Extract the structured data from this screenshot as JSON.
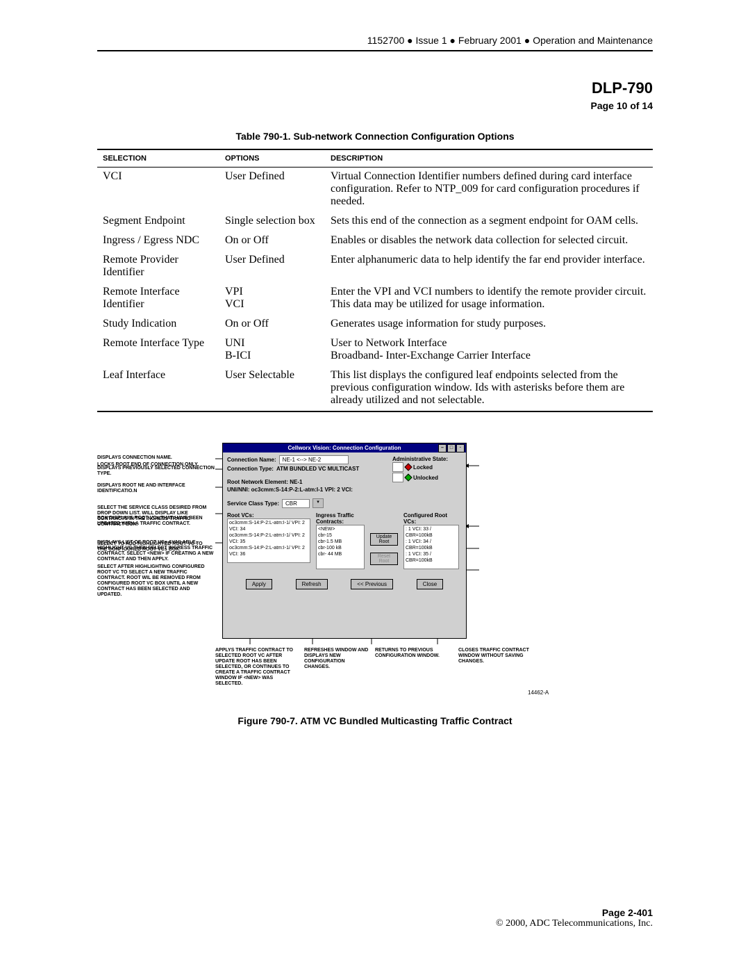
{
  "header": {
    "docnum": "1152700",
    "issue": "Issue 1",
    "date": "February 2001",
    "section": "Operation and Maintenance",
    "bullet": "●"
  },
  "title": {
    "dlp": "DLP-790",
    "page_of": "Page 10 of 14"
  },
  "table": {
    "caption": "Table 790-1. Sub-network Connection Configuration Options",
    "columns": [
      "Selection",
      "Options",
      "Description"
    ],
    "rows": [
      [
        "VCI",
        "User Defined",
        "Virtual Connection Identifier numbers defined during card interface configuration. Refer to NTP_009 for card configuration procedures if needed."
      ],
      [
        "Segment Endpoint",
        "Single selection box",
        "Sets this end of the connection as a segment endpoint for OAM cells."
      ],
      [
        "Ingress / Egress NDC",
        "On or Off",
        "Enables or disables the network data collection for selected circuit."
      ],
      [
        "Remote Provider Identifier",
        "User Defined",
        "Enter alphanumeric data to help identify the far end provider interface."
      ],
      [
        "Remote Interface Identifier",
        "VPI\nVCI",
        "Enter the VPI and VCI numbers to identify the remote provider circuit. This data may be utilized for usage information."
      ],
      [
        "Study Indication",
        "On or Off",
        "Generates usage information for study purposes."
      ],
      [
        "Remote Interface Type",
        "UNI\nB-ICI",
        "User to Network Interface\nBroadband- Inter-Exchange Carrier Interface"
      ],
      [
        "Leaf Interface",
        "User Selectable",
        "This list displays the configured leaf endpoints selected from the previous configuration window. Ids with asterisks before them are already utilized and not selectable."
      ]
    ]
  },
  "window": {
    "title": "Cellworx Vision: Connection Configuration",
    "conn_name_label": "Connection Name:",
    "conn_name_value": "NE-1 <--> NE-2",
    "conn_type_label": "Connection Type:",
    "conn_type_value": "ATM BUNDLED VC MULTICAST",
    "admin_state_label": "Administrative State:",
    "locked": "Locked",
    "unlocked": "Unlocked",
    "root_ne_label": "Root Network Element: NE-1",
    "uni_nni_label": "UNI/NNI:  oc3cmm:S-14:P-2:L-atm:I-1  VPI: 2  VCI:",
    "svc_class_label": "Service Class Type:",
    "svc_class_value": "CBR",
    "root_vcs_label": "Root VCs:",
    "root_vcs_items": [
      "oc3cmm:S-14:P-2:L-atm:I-1/ VPI: 2  VCI: 34",
      "oc3cmm:S-14:P-2:L-atm:I-1/ VPI: 2  VCI: 35",
      "oc3cmm:S-14:P-2:L-atm:I-1/ VPI: 2  VCI: 36"
    ],
    "ingress_label": "Ingress Traffic Contracts:",
    "ingress_items": [
      "<NEW>",
      "cbr-15",
      "cbr-1.5 MB",
      "cbr-100 kB",
      "cbr- 44 MB"
    ],
    "configured_label": "Configured Root VCs:",
    "configured_items": [
      ": 1 VCI: 33 / CBR=100kB",
      ": 1 VCI: 34 / CBR=100kB",
      ": 1 VCI: 35 / CBR=100kB"
    ],
    "update_root": "Update Root",
    "reset_root": "Reset Root",
    "apply": "Apply",
    "refresh": "Refresh",
    "previous": "<< Previous",
    "close": "Close"
  },
  "annot": {
    "l1": "DISPLAYS CONNECTION NAME.",
    "l2": "DISPLAYS PREVIOUSLY SELECTED CONNECTION TYPE.",
    "l3": "DISPLAYS ROOT NE AND INTERFACE IDENTIFICATIO.N",
    "l4": "SELECT THE SERVICE CLASS DESIRED FROM DROP DOWN LIST. WILL DISPLAY LIKE CONTRACTS IN THE INGRESS TRAFFIC CONTRACT BOX.",
    "l5": "DISPLAYS LIST OF ROOT VCs AVAILABLE. HIGHLIGHT VC THEN SELECT INGRESS TRAFFIC CONTRACT. SELECT <NEW> IF CREATING A NEW CONTRACT AND THEN APPLY.",
    "r1": "LOCKS ROOT END OF CONNECTION ONLY.",
    "r2": "BOX DISPLAYS ROOT VCs THAT HAVE BEEN UPDATED WITH A TRAFFIC CONTRACT.",
    "r3": "SELECT TO ADD HIGHLIGHTED ROOT VC TO THE CONFIGURED ROOT VCs BOX.",
    "r4": "SELECT AFTER HIGHLIGHTING CONFIGURED ROOT VC TO SELECT A NEW TRAFFIC CONTRACT.  ROOT WIL BE REMOVED FROM CONFIGURED ROOT VC BOX UNTIL A NEW CONTRACT HAS BEEN SELECTED AND UPDATED.",
    "b1": "APPLYS TRAFFIC CONTRACT TO SELECTED ROOT VC AFTER UPDATE ROOT HAS BEEN SELECTED, OR CONTINUES TO CREATE A TRAFFIC CONTRACT WINDOW IF <NEW> WAS SELECTED.",
    "b2": "REFRESHES WINDOW AND DISPLAYS NEW CONFIGURATION CHANGES.",
    "b3": "RETURNS TO PREVIOUS CONFIGURATION WINDOW.",
    "b4": "CLOSES TRAFFIC CONTRACT WINDOW WITHOUT SAVING CHANGES.",
    "fignum": "14462-A"
  },
  "figure_caption": "Figure 790-7.  ATM VC Bundled Multicasting Traffic Contract",
  "footer": {
    "page": "Page 2-401",
    "copyright": "© 2000, ADC Telecommunications, Inc."
  }
}
